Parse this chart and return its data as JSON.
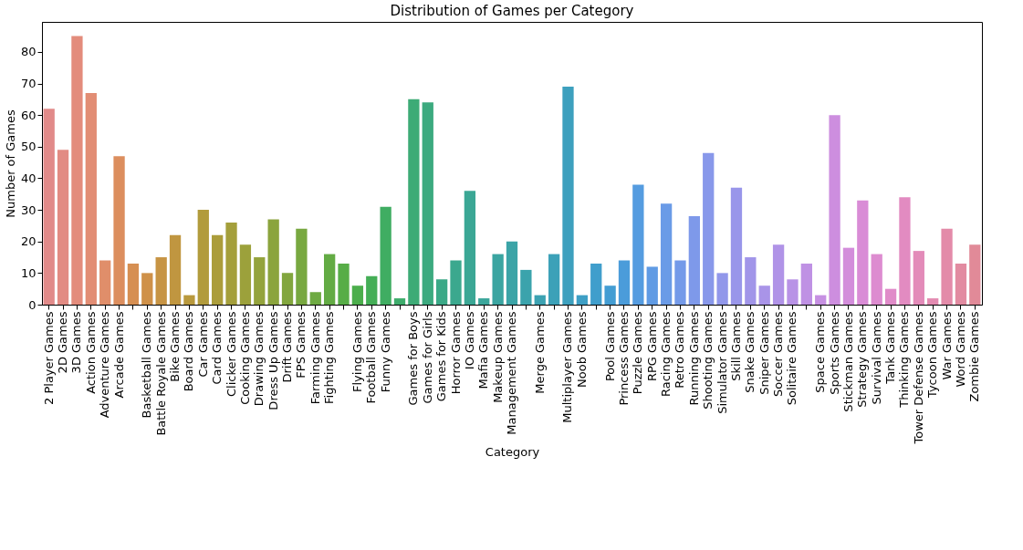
{
  "chart_data": {
    "type": "bar",
    "title": "Distribution of Games per Category",
    "xlabel": "Category",
    "ylabel": "Number of Games",
    "categories": [
      "2 Player Games",
      "2D Games",
      "3D Games",
      "Action Games",
      "Adventure Games",
      "Arcade Games",
      null,
      "Basketball Games",
      "Battle Royale Games",
      "Bike Games",
      "Board Games",
      "Car Games",
      "Card Games",
      "Clicker Games",
      "Cooking Games",
      "Drawing Games",
      "Dress Up Games",
      "Drift Games",
      "FPS Games",
      "Farming Games",
      "Fighting Games",
      null,
      "Flying Games",
      "Football Games",
      "Funny Games",
      null,
      "Games for Boys",
      "Games for Girls",
      "Games for Kids",
      "Horror Games",
      "IO Games",
      "Mafia Games",
      "Makeup Games",
      "Management Games",
      null,
      "Merge Games",
      null,
      "Multiplayer Games",
      "Noob Games",
      null,
      "Pool Games",
      "Princess Games",
      "Puzzle Games",
      "RPG Games",
      "Racing Games",
      "Retro Games",
      "Running Games",
      "Shooting Games",
      "Simulator Games",
      "Skill Games",
      "Snake Games",
      "Sniper Games",
      "Soccer Games",
      "Solitaire Games",
      null,
      "Space Games",
      "Sports Games",
      "Stickman Games",
      "Strategy Games",
      "Survival Games",
      "Tank Games",
      "Thinking Games",
      "Tower Defense Games",
      "Tycoon Games",
      "War Games",
      "Word Games",
      "Zombie Games"
    ],
    "values": [
      62,
      49,
      85,
      67,
      14,
      47,
      13,
      10,
      15,
      22,
      3,
      30,
      22,
      26,
      19,
      15,
      27,
      10,
      24,
      4,
      16,
      13,
      6,
      9,
      31,
      2,
      65,
      64,
      8,
      14,
      36,
      2,
      16,
      20,
      11,
      3,
      16,
      69,
      3,
      13,
      6,
      14,
      38,
      12,
      32,
      14,
      28,
      48,
      10,
      37,
      15,
      6,
      19,
      8,
      13,
      3,
      60,
      18,
      33,
      16,
      5,
      34,
      17,
      2,
      24,
      13,
      19
    ],
    "colors": [
      "#e18a89",
      "#e28b83",
      "#e38c7c",
      "#e28d74",
      "#e08e6a",
      "#dc8e5e",
      "#d68f52",
      "#cf9149",
      "#c79444",
      "#c09640",
      "#b9993d",
      "#b29b3c",
      "#ab9d3b",
      "#a49f3b",
      "#9ca13b",
      "#94a33c",
      "#8ba43d",
      "#82a63e",
      "#78a840",
      "#6eaa42",
      "#63ab44",
      "#57ad47",
      "#4cae4c",
      "#44ae56",
      "#40ad62",
      "#3eac6c",
      "#3dab76",
      "#3caa7f",
      "#3ba987",
      "#3ba88e",
      "#3ba795",
      "#3ba69b",
      "#3ba5a1",
      "#3ba4a7",
      "#3ba3ac",
      "#3ca2b2",
      "#3ca1b8",
      "#3da0be",
      "#3e9fc5",
      "#409ecc",
      "#439dd3",
      "#4b9cda",
      "#559ce0",
      "#609be4",
      "#6a9be7",
      "#749ae9",
      "#7e99ea",
      "#8898ea",
      "#9197ea",
      "#9996ea",
      "#a195e9",
      "#a994e8",
      "#b093e7",
      "#b892e6",
      "#bf91e4",
      "#c690e2",
      "#cd8edf",
      "#d38ddb",
      "#d98cd6",
      "#dd8cd0",
      "#e08bc9",
      "#e28bc1",
      "#e38bb9",
      "#e38bb1",
      "#e38ba9",
      "#e28ba1",
      "#e18a98"
    ],
    "ylim": [
      0,
      89.5
    ],
    "yticks": [
      0,
      10,
      20,
      30,
      40,
      50,
      60,
      70,
      80
    ],
    "grid": false
  }
}
